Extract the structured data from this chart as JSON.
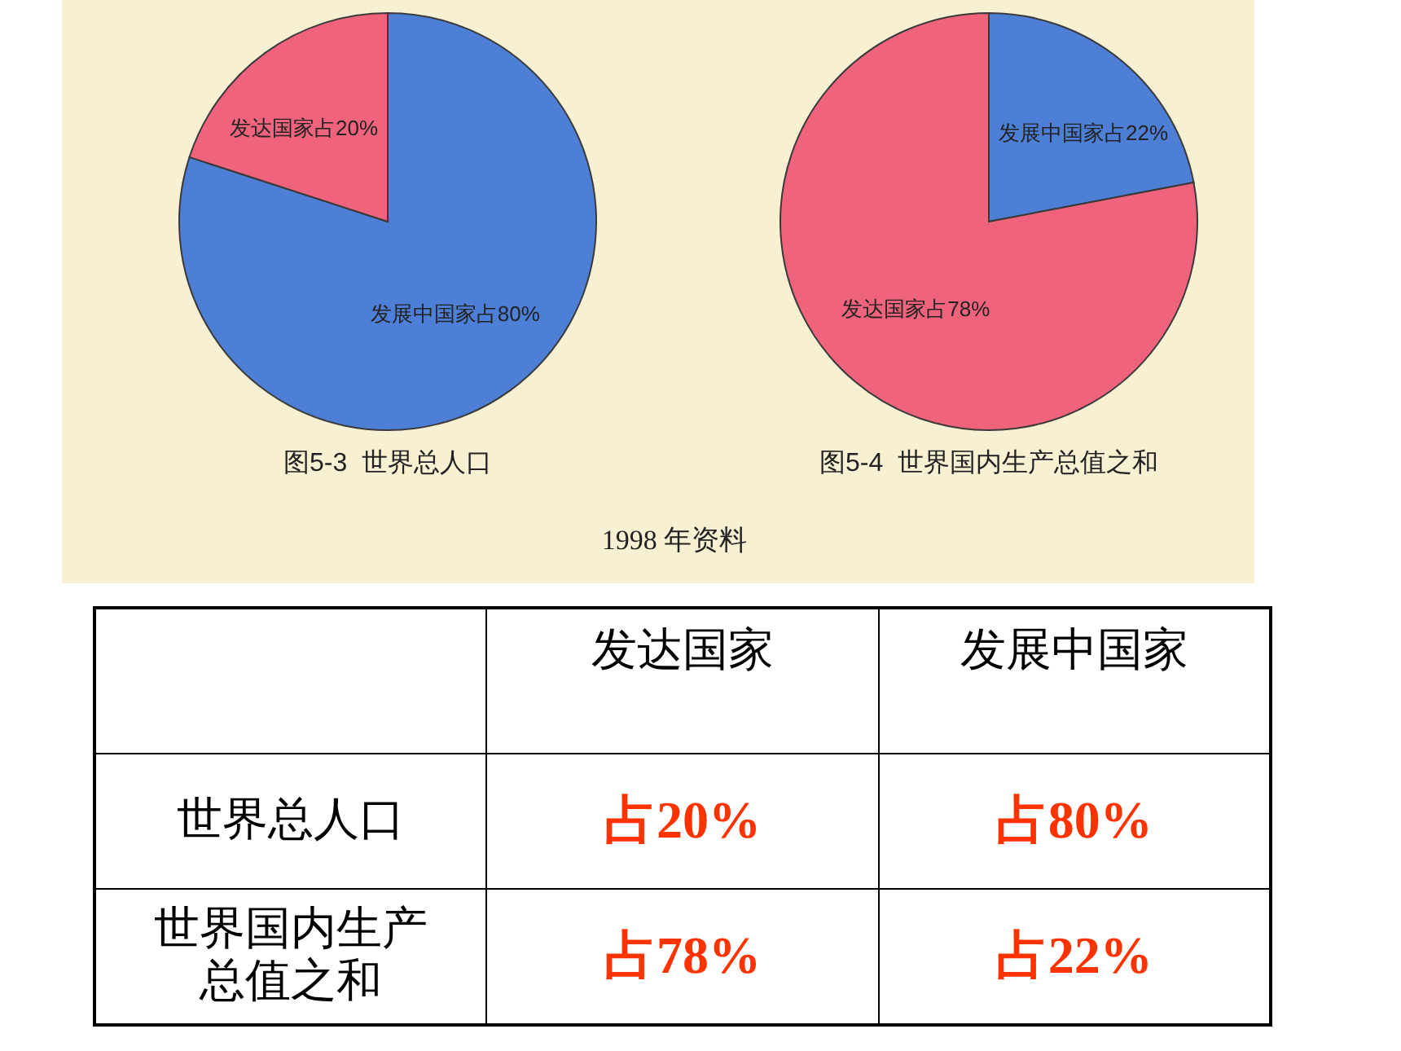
{
  "chart_data": [
    {
      "type": "pie",
      "title": "图5-3  世界总人口",
      "categories": [
        "发展中国家",
        "发达国家"
      ],
      "values": [
        80,
        20
      ],
      "colors": [
        "#4d7fd6",
        "#f0637c"
      ],
      "value_labels": [
        "占80%",
        "占20%"
      ],
      "annotations": [
        "1998 年资料"
      ]
    },
    {
      "type": "pie",
      "title": "图5-4  世界国内生产总值之和",
      "categories": [
        "发展中国家",
        "发达国家"
      ],
      "values": [
        22,
        78
      ],
      "colors": [
        "#4d7fd6",
        "#f0637c"
      ],
      "value_labels": [
        "占22%",
        "占78%"
      ]
    },
    {
      "type": "other",
      "categories": [
        "发达国家",
        "发展中国家"
      ],
      "y_categories": [
        "世界总人口",
        "世界国内生产总值之和"
      ],
      "cell_labels": [
        [
          "占20%",
          "占80%"
        ],
        [
          "占78%",
          "占22%"
        ]
      ]
    }
  ]
}
